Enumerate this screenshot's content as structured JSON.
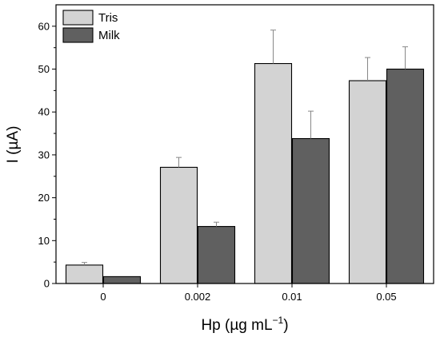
{
  "chart_data": {
    "type": "bar",
    "categories": [
      "0",
      "0.002",
      "0.01",
      "0.05"
    ],
    "series": [
      {
        "name": "Tris",
        "color": "#d3d3d3",
        "values": [
          4.3,
          27.1,
          51.3,
          47.3
        ],
        "errors": [
          0.6,
          2.3,
          7.8,
          5.4
        ]
      },
      {
        "name": "Milk",
        "color": "#606060",
        "values": [
          1.6,
          13.3,
          33.8,
          50.0
        ],
        "errors": [
          0.0,
          1.0,
          6.4,
          5.2
        ]
      }
    ],
    "xlabel": {
      "main": "Hp (µg mL",
      "sup": "−1",
      "close": ")"
    },
    "ylabel": "I (µA)",
    "ylim": [
      0,
      65
    ],
    "yticks": [
      0,
      10,
      20,
      30,
      40,
      50,
      60
    ],
    "legend": "top-left",
    "grid": false
  }
}
